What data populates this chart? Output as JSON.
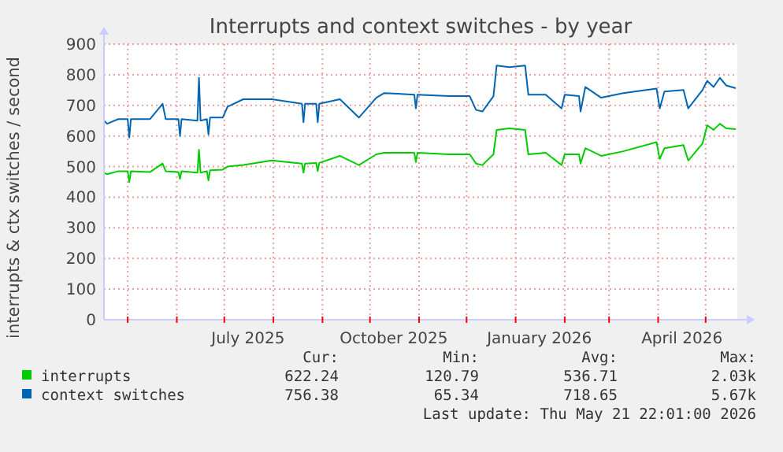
{
  "chart_data": {
    "type": "line",
    "title": "Interrupts and context switches - by year",
    "ylabel": "interrupts & ctx switches / second",
    "xlim": [
      "2025-04-16",
      "2026-05-21"
    ],
    "xticks": [
      {
        "value": "2025-05-01",
        "label": null
      },
      {
        "value": "2025-06-01",
        "label": null
      },
      {
        "value": "2025-07-01",
        "label": null
      },
      {
        "value": "2025-07-16",
        "label": "July 2025"
      },
      {
        "value": "2025-08-01",
        "label": null
      },
      {
        "value": "2025-09-01",
        "label": null
      },
      {
        "value": "2025-10-01",
        "label": null
      },
      {
        "value": "2025-10-16",
        "label": "October 2025"
      },
      {
        "value": "2025-11-01",
        "label": null
      },
      {
        "value": "2025-12-01",
        "label": null
      },
      {
        "value": "2026-01-01",
        "label": null
      },
      {
        "value": "2026-01-16",
        "label": "January 2026"
      },
      {
        "value": "2026-02-01",
        "label": null
      },
      {
        "value": "2026-03-01",
        "label": null
      },
      {
        "value": "2026-04-01",
        "label": null
      },
      {
        "value": "2026-04-16",
        "label": "April 2026"
      },
      {
        "value": "2026-05-01",
        "label": null
      }
    ],
    "ylim": [
      0,
      900
    ],
    "yticks": [
      0,
      100,
      200,
      300,
      400,
      500,
      600,
      700,
      800,
      900
    ],
    "grid": true,
    "legend": "bottom",
    "line_style": "solid",
    "series": [
      {
        "name": "interrupts",
        "color": "#00cc00",
        "x": [
          "2025-04-16",
          "2025-04-18",
          "2025-04-25",
          "2025-05-01",
          "2025-05-02",
          "2025-05-03",
          "2025-05-15",
          "2025-05-23",
          "2025-05-25",
          "2025-06-02",
          "2025-06-03",
          "2025-06-04",
          "2025-06-14",
          "2025-06-15",
          "2025-06-16",
          "2025-06-20",
          "2025-06-21",
          "2025-06-22",
          "2025-06-30",
          "2025-07-03",
          "2025-07-13",
          "2025-07-31",
          "2025-08-19",
          "2025-08-20",
          "2025-08-21",
          "2025-08-28",
          "2025-08-29",
          "2025-08-30",
          "2025-09-12",
          "2025-09-24",
          "2025-10-05",
          "2025-10-10",
          "2025-10-29",
          "2025-10-30",
          "2025-10-31",
          "2025-11-20",
          "2025-12-03",
          "2025-12-07",
          "2025-12-11",
          "2025-12-18",
          "2025-12-20",
          "2025-12-28",
          "2026-01-07",
          "2026-01-09",
          "2026-01-20",
          "2026-01-30",
          "2026-02-01",
          "2026-02-10",
          "2026-02-11",
          "2026-02-14",
          "2026-02-24",
          "2026-03-10",
          "2026-03-31",
          "2026-04-02",
          "2026-04-05",
          "2026-04-17",
          "2026-04-20",
          "2026-04-29",
          "2026-05-02",
          "2026-05-06",
          "2026-05-10",
          "2026-05-14",
          "2026-05-20"
        ],
        "values": [
          480,
          475,
          485,
          485,
          450,
          485,
          482,
          510,
          485,
          482,
          460,
          485,
          480,
          555,
          480,
          485,
          455,
          488,
          490,
          500,
          505,
          520,
          510,
          480,
          510,
          512,
          485,
          512,
          535,
          505,
          540,
          545,
          545,
          515,
          545,
          540,
          540,
          510,
          505,
          540,
          620,
          625,
          620,
          540,
          545,
          505,
          540,
          540,
          510,
          560,
          535,
          550,
          580,
          525,
          560,
          570,
          520,
          575,
          635,
          620,
          640,
          625,
          622
        ]
      },
      {
        "name": "context switches",
        "color": "#0066b3",
        "x": [
          "2025-04-16",
          "2025-04-18",
          "2025-04-25",
          "2025-05-01",
          "2025-05-02",
          "2025-05-03",
          "2025-05-15",
          "2025-05-23",
          "2025-05-25",
          "2025-06-02",
          "2025-06-03",
          "2025-06-04",
          "2025-06-14",
          "2025-06-15",
          "2025-06-16",
          "2025-06-20",
          "2025-06-21",
          "2025-06-22",
          "2025-06-30",
          "2025-07-03",
          "2025-07-13",
          "2025-07-31",
          "2025-08-19",
          "2025-08-20",
          "2025-08-21",
          "2025-08-28",
          "2025-08-29",
          "2025-08-30",
          "2025-09-12",
          "2025-09-24",
          "2025-10-05",
          "2025-10-10",
          "2025-10-29",
          "2025-10-30",
          "2025-10-31",
          "2025-11-20",
          "2025-12-03",
          "2025-12-07",
          "2025-12-11",
          "2025-12-18",
          "2025-12-20",
          "2025-12-28",
          "2026-01-07",
          "2026-01-09",
          "2026-01-20",
          "2026-01-30",
          "2026-02-01",
          "2026-02-10",
          "2026-02-11",
          "2026-02-14",
          "2026-02-24",
          "2026-03-10",
          "2026-03-31",
          "2026-04-02",
          "2026-04-05",
          "2026-04-17",
          "2026-04-20",
          "2026-04-29",
          "2026-05-02",
          "2026-05-06",
          "2026-05-10",
          "2026-05-14",
          "2026-05-20"
        ],
        "values": [
          650,
          640,
          655,
          655,
          595,
          655,
          655,
          705,
          655,
          655,
          600,
          655,
          650,
          790,
          650,
          655,
          605,
          660,
          660,
          695,
          720,
          720,
          705,
          645,
          705,
          705,
          645,
          705,
          720,
          660,
          725,
          740,
          735,
          690,
          735,
          730,
          730,
          685,
          680,
          730,
          830,
          825,
          830,
          735,
          735,
          690,
          735,
          730,
          680,
          760,
          725,
          740,
          755,
          690,
          745,
          750,
          690,
          750,
          780,
          760,
          790,
          765,
          756
        ]
      }
    ],
    "annotations": [
      "Cur:",
      "Min:",
      "Avg:",
      "Max:",
      "622.24",
      "120.79",
      "536.71",
      "2.03k",
      "756.38",
      "65.34",
      "718.65",
      "5.67k",
      "Last update: Thu May 21 22:01:00 2026"
    ]
  }
}
